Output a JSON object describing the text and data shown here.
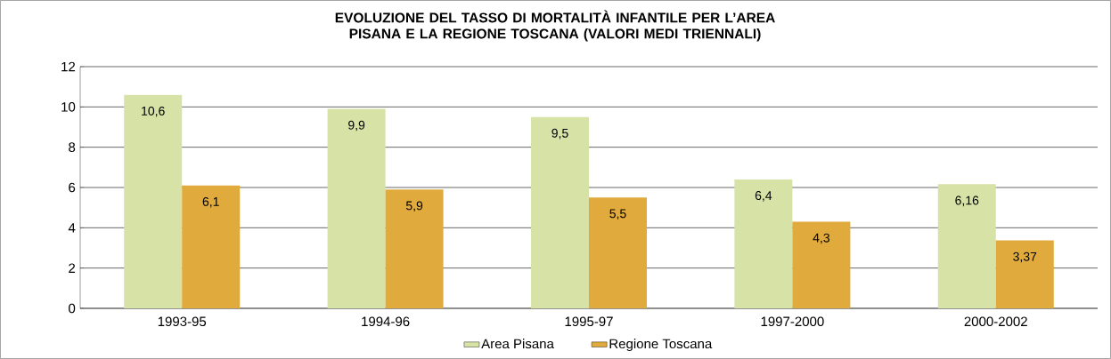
{
  "chart_data": {
    "type": "bar",
    "title": "EVOLUZIONE DEL TASSO DI MORTALITÀ INFANTILE PER L’AREA PISANA E LA REGIONE TOSCANA (VALORI MEDI TRIENNALI)",
    "categories": [
      "1993-95",
      "1994-96",
      "1995-97",
      "1997-2000",
      "2000-2002"
    ],
    "series": [
      {
        "name": "Area Pisana",
        "color": "#d6e2a6",
        "values": [
          10.6,
          9.9,
          9.5,
          6.4,
          6.16
        ],
        "value_labels": [
          "10,6",
          "9,9",
          "9,5",
          "6,4",
          "6,16"
        ]
      },
      {
        "name": "Regione Toscana",
        "color": "#e0aa3c",
        "values": [
          6.1,
          5.9,
          5.5,
          4.3,
          3.37
        ],
        "value_labels": [
          "6,1",
          "5,9",
          "5,5",
          "4,3",
          "3,37"
        ]
      }
    ],
    "ylim": [
      0,
      12
    ],
    "yticks": [
      0,
      2,
      4,
      6,
      8,
      10,
      12
    ],
    "grid": "y",
    "legend": "bottom"
  }
}
